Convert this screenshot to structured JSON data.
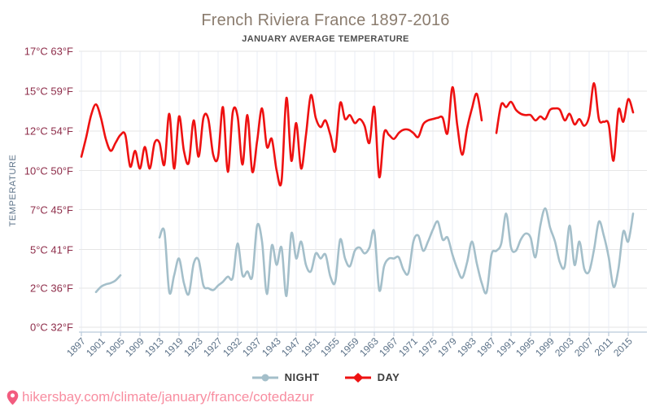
{
  "title": "French Riviera France 1897-2016",
  "subtitle": "JANUARY AVERAGE TEMPERATURE",
  "y_axis": {
    "title": "TEMPERATURE",
    "tick_labels": [
      "17°C 63°F",
      "15°C 59°F",
      "12°C 54°F",
      "10°C 50°F",
      "7°C 45°F",
      "5°C 41°F",
      "2°C 36°F",
      "0°C 32°F"
    ]
  },
  "x_axis": {
    "tick_labels": [
      "1897",
      "1901",
      "1905",
      "1909",
      "1913",
      "1919",
      "1923",
      "1927",
      "1932",
      "1937",
      "1943",
      "1947",
      "1951",
      "1955",
      "1959",
      "1963",
      "1967",
      "1971",
      "1975",
      "1979",
      "1983",
      "1987",
      "1991",
      "1995",
      "1999",
      "2003",
      "2007",
      "2011",
      "2015"
    ]
  },
  "legend": {
    "night": {
      "label": "NIGHT",
      "color": "#a4bfca"
    },
    "day": {
      "label": "DAY",
      "color": "#ee1111"
    }
  },
  "footer": {
    "url": "hikersbay.com/climate/january/france/cotedazur",
    "pin_color": "#f25c7f"
  },
  "colors": {
    "day_line": "#ee1111",
    "night_line": "#a4bfca",
    "y_label": "#8e2d4a",
    "x_label": "#5d7389",
    "title": "#8b7c6e",
    "grid_h": "#e6e6e6",
    "grid_v": "#e9eef4",
    "axis": "#b9c9da",
    "url": "#f88da0"
  },
  "chart_data": {
    "type": "line",
    "title": "French Riviera France 1897-2016",
    "subtitle": "JANUARY AVERAGE TEMPERATURE",
    "ylabel": "TEMPERATURE",
    "y_tick_values_c": [
      17,
      15,
      12,
      10,
      7,
      5,
      2,
      0
    ],
    "y_axis_note": "categorical-spaced ticks; labels show °C and °F pairs",
    "grid": true,
    "legend_position": "bottom",
    "years": [
      1897,
      1898,
      1899,
      1900,
      1901,
      1902,
      1903,
      1904,
      1905,
      1906,
      1907,
      1908,
      1909,
      1910,
      1911,
      1912,
      1913,
      1914,
      1916,
      1918,
      1919,
      1920,
      1921,
      1922,
      1923,
      1924,
      1925,
      1926,
      1927,
      1928,
      1929,
      1931,
      1932,
      1933,
      1934,
      1936,
      1937,
      1938,
      1940,
      1942,
      1943,
      1944,
      1945,
      1946,
      1947,
      1948,
      1949,
      1950,
      1951,
      1952,
      1953,
      1954,
      1955,
      1956,
      1957,
      1958,
      1959,
      1960,
      1961,
      1962,
      1963,
      1964,
      1965,
      1966,
      1967,
      1968,
      1969,
      1970,
      1971,
      1972,
      1973,
      1974,
      1975,
      1976,
      1977,
      1978,
      1979,
      1980,
      1981,
      1982,
      1983,
      1984,
      1985,
      1986,
      1987,
      1988,
      1989,
      1990,
      1991,
      1992,
      1993,
      1994,
      1995,
      1996,
      1997,
      1998,
      1999,
      2000,
      2001,
      2002,
      2003,
      2004,
      2005,
      2006,
      2007,
      2008,
      2009,
      2010,
      2011,
      2012,
      2013,
      2014,
      2015,
      2016
    ],
    "series": [
      {
        "name": "NIGHT",
        "unit": "°C",
        "values": [
          null,
          null,
          null,
          1.8,
          2.1,
          2.3,
          2.4,
          2.6,
          3.0,
          null,
          null,
          null,
          null,
          null,
          null,
          null,
          5.6,
          5.9,
          1.8,
          3.0,
          4.3,
          2.4,
          1.7,
          3.9,
          4.2,
          2.2,
          2.0,
          1.9,
          2.2,
          2.5,
          2.9,
          2.8,
          5.3,
          3.0,
          3.3,
          2.9,
          6.2,
          5.4,
          1.7,
          5.2,
          3.8,
          5.1,
          1.6,
          5.8,
          4.3,
          5.4,
          3.8,
          3.3,
          4.7,
          4.3,
          4.6,
          2.9,
          2.5,
          5.5,
          4.3,
          3.7,
          4.9,
          5.1,
          4.7,
          5.1,
          5.9,
          1.9,
          3.7,
          4.3,
          4.3,
          4.4,
          3.4,
          3.2,
          5.4,
          5.7,
          4.9,
          5.4,
          6.0,
          6.4,
          5.5,
          5.6,
          4.6,
          3.5,
          2.8,
          4.0,
          5.4,
          3.9,
          2.4,
          1.8,
          4.6,
          4.9,
          5.3,
          6.8,
          5.1,
          4.9,
          5.5,
          5.8,
          5.6,
          4.4,
          6.2,
          7.1,
          6.1,
          5.4,
          4.0,
          3.7,
          6.2,
          3.8,
          5.4,
          3.5,
          3.3,
          5.0,
          6.4,
          5.7,
          4.4,
          2.1,
          3.5,
          5.9,
          5.4,
          6.8
        ]
      },
      {
        "name": "DAY",
        "unit": "°C",
        "values": [
          10.7,
          11.7,
          13.2,
          14.0,
          13.0,
          11.6,
          11.0,
          11.4,
          11.8,
          11.8,
          10.2,
          11.0,
          10.1,
          11.2,
          10.1,
          11.4,
          11.4,
          10.3,
          13.3,
          10.1,
          13.1,
          11.0,
          10.4,
          12.8,
          10.7,
          13.0,
          12.9,
          10.8,
          10.7,
          13.8,
          9.9,
          13.4,
          13.1,
          10.3,
          13.2,
          9.9,
          11.5,
          13.7,
          11.2,
          11.6,
          10.0,
          9.2,
          14.5,
          10.5,
          12.6,
          10.1,
          11.8,
          14.7,
          13.0,
          12.3,
          12.8,
          11.8,
          11.0,
          14.1,
          12.9,
          13.2,
          12.6,
          12.9,
          12.4,
          11.4,
          13.8,
          9.5,
          11.9,
          11.8,
          11.6,
          11.9,
          12.1,
          12.1,
          11.9,
          11.7,
          12.5,
          12.8,
          12.9,
          13.0,
          13.0,
          11.9,
          15.2,
          12.4,
          10.8,
          12.2,
          13.7,
          14.8,
          12.8,
          null,
          null,
          11.9,
          14.0,
          13.8,
          14.2,
          13.6,
          13.3,
          13.2,
          13.2,
          12.8,
          13.1,
          12.9,
          13.6,
          13.7,
          13.6,
          12.8,
          13.3,
          12.5,
          12.9,
          12.4,
          13.1,
          15.4,
          12.9,
          12.7,
          12.5,
          10.5,
          13.6,
          12.7,
          14.4,
          13.4
        ]
      }
    ]
  }
}
